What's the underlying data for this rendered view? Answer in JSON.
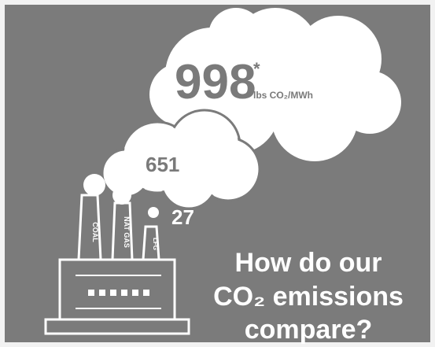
{
  "infographic": {
    "coal": {
      "value": 998,
      "footnote": "*",
      "unit": "lbs CO₂/MWh"
    },
    "gas": {
      "value": 651
    },
    "other": {
      "value": 27
    },
    "chimney_labels": [
      "COAL",
      "NAT GAS",
      "LFG"
    ],
    "question": [
      "How do our",
      "CO₂ emissions",
      "compare?"
    ]
  }
}
